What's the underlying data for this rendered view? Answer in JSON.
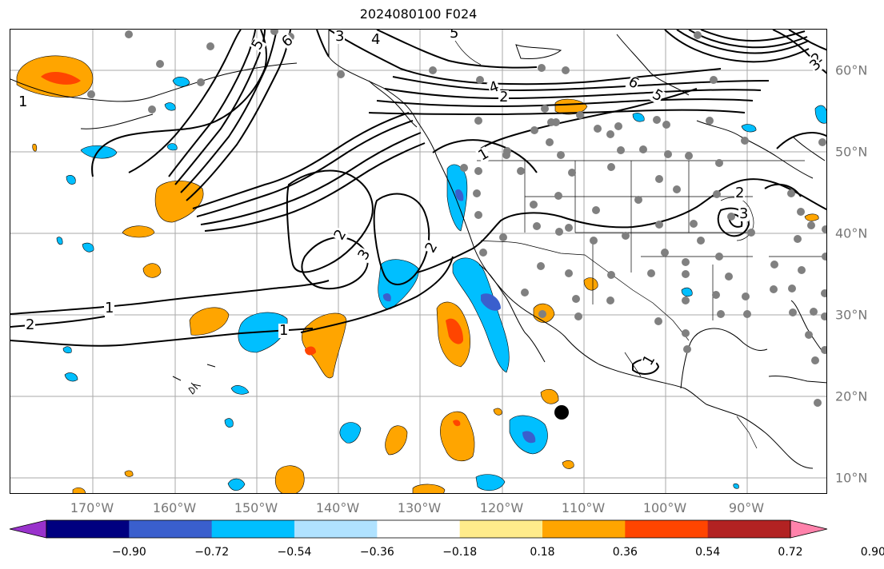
{
  "title": "2024080100 F024",
  "lon_labels": [
    "170°W",
    "160°W",
    "150°W",
    "140°W",
    "130°W",
    "120°W",
    "110°W",
    "100°W",
    "90°W"
  ],
  "lat_labels": [
    "60°N",
    "50°N",
    "40°N",
    "30°N",
    "20°N",
    "10°N"
  ],
  "colorbar": {
    "colors": [
      "#9932cc",
      "#000080",
      "#3a5fcd",
      "#00bfff",
      "#b0e2ff",
      "#ffffff",
      "#ffec8b",
      "#ffa500",
      "#ff4500",
      "#b22222",
      "#ff82ab"
    ],
    "tick_labels": [
      "−0.90",
      "−0.72",
      "−0.54",
      "−0.36",
      "−0.18",
      "0.18",
      "0.36",
      "0.54",
      "0.72",
      "0.90"
    ]
  },
  "contour_labels": {
    "c_1_west": "1",
    "c_2_west": "2",
    "c_1_mid": "1",
    "c_1_ocean": "1",
    "c_2_gyre": "2",
    "c_3_gyre": "3",
    "c_2_coast": "2",
    "c_1_nw": "1",
    "c_1_bc": "1",
    "c_2_ak": "2",
    "c_4_ak": "4",
    "c_3_top": "3",
    "c_4_top": "4",
    "c_5_top": "5",
    "c_5_nw": "5",
    "c_6_nw": "6",
    "c_6_can": "6",
    "c_5_can": "5",
    "c_2_lakes": "2",
    "c_3_lakes": "3",
    "c_1_mex": "1",
    "c_2_ne": "2",
    "c_3_ne": "3"
  },
  "station_marker": "black-dot"
}
